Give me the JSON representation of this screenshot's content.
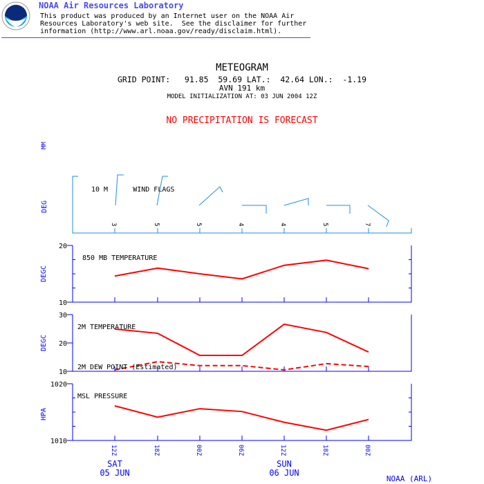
{
  "header": {
    "org_title": "NOAA Air Resources Laboratory",
    "disclaimer_lines": [
      "This product was produced by an Internet user on the NOAA Air",
      "Resources Laboratory's web site.  See the disclaimer for further",
      "information (http://www.arl.noaa.gov/ready/disclaim.html)."
    ],
    "logo_text": "NOAA"
  },
  "title": {
    "main": "METEOGRAM",
    "grid_point": "GRID POINT:   91.85  59.69 LAT.:  42.64 LON.:  -1.19",
    "model": "AVN 191 km",
    "init": "MODEL INITIALIZATION AT: 03 JUN 2004 12Z",
    "precip": "NO PRECIPITATION IS FORECAST",
    "precip_unit": "MM"
  },
  "colors": {
    "axis": "#0000ff",
    "series": "#ff0000",
    "wind": "#1e8ee0",
    "text_blue": "#0000ff"
  },
  "footer": "NOAA (ARL)",
  "chart_data": [
    {
      "type": "wind",
      "title": "10 M      WIND FLAGS",
      "ylabel": "DEG",
      "speeds": [
        "3",
        "5",
        "5",
        "4",
        "4",
        "5",
        "7"
      ]
    },
    {
      "type": "line",
      "title": "850 MB      TEMPERATURE",
      "ylabel": "DEGC",
      "ylim": [
        10,
        20
      ],
      "ytick_labels": [
        "20",
        "10"
      ],
      "series": [
        {
          "name": "850 MB TEMPERATURE",
          "values": [
            14.6,
            16.0,
            15.0,
            14.1,
            16.5,
            17.4,
            15.9
          ]
        }
      ]
    },
    {
      "type": "line",
      "title": "2M TEMPERATURE",
      "ylabel": "DEGC",
      "ylim": [
        10,
        30
      ],
      "ytick_labels": [
        "30",
        "20",
        "10"
      ],
      "series": [
        {
          "name": "2M TEMPERATURE",
          "values": [
            24.9,
            23.4,
            15.6,
            15.6,
            26.6,
            23.7,
            16.8
          ]
        },
        {
          "name": "2M DEW POINT (Estimated)",
          "dashed": true,
          "values": [
            10.5,
            13.4,
            12.0,
            12.0,
            10.5,
            12.7,
            11.7
          ]
        }
      ]
    },
    {
      "type": "line",
      "title": "MSL PRESSURE",
      "ylabel": "HPA",
      "ylim": [
        1010,
        1020
      ],
      "ytick_labels": [
        "1020",
        "1010"
      ],
      "series": [
        {
          "name": "MSL PRESSURE",
          "values": [
            1016.1,
            1014.1,
            1015.6,
            1015.1,
            1013.2,
            1011.8,
            1013.7
          ]
        }
      ]
    }
  ],
  "x_ticks": [
    "12Z",
    "18Z",
    "00Z",
    "06Z",
    "12Z",
    "18Z",
    "00Z"
  ],
  "days": [
    {
      "dow": "SAT",
      "date": "05 JUN"
    },
    {
      "dow": "SUN",
      "date": "06 JUN"
    }
  ]
}
